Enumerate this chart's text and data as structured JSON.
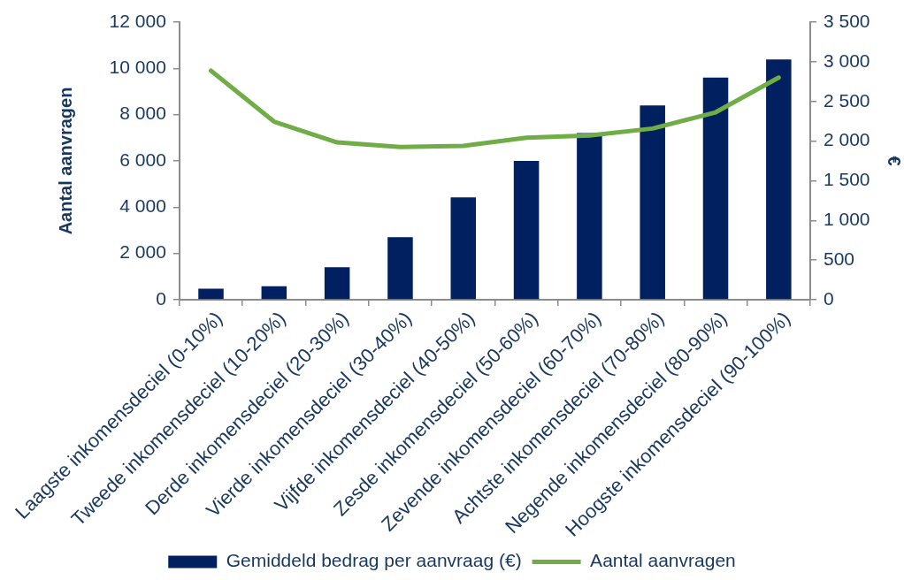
{
  "chart_data": {
    "type": "bar",
    "categories": [
      "Laagste inkomensdeciel (0-10%)",
      "Tweede inkomensdeciel (10-20%)",
      "Derde inkomensdeciel (20-30%)",
      "Vierde inkomensdeciel (30-40%)",
      "Vijfde inkomensdeciel (40-50%)",
      "Zesde inkomensdeciel (50-60%)",
      "Zevende inkomensdeciel (60-70%)",
      "Achtste inkomensdeciel (70-80%)",
      "Negende inkomensdeciel (80-90%)",
      "Hoogste inkomensdeciel (90-100%)"
    ],
    "ylabel": "Aantal aanvragen",
    "y2label": "€",
    "ylim": [
      0,
      12000
    ],
    "yticks": [
      0,
      {
        "value": 2000,
        "label": "2 000"
      },
      {
        "value": 4000,
        "label": "4 000"
      },
      {
        "value": 6000,
        "label": "6 000"
      },
      {
        "value": 8000,
        "label": "8 000"
      },
      {
        "value": 10000,
        "label": "10 000"
      },
      {
        "value": 12000,
        "label": "12 000"
      }
    ],
    "y2lim": [
      0,
      3500
    ],
    "y2ticks": [
      0,
      500,
      {
        "value": 1000,
        "label": "1 000"
      },
      {
        "value": 1500,
        "label": "1 500"
      },
      {
        "value": 2000,
        "label": "2 000"
      },
      {
        "value": 2500,
        "label": "2 500"
      },
      {
        "value": 3000,
        "label": "3 000"
      },
      {
        "value": 3500,
        "label": "3 500"
      }
    ],
    "legend": "bottom",
    "marker": "none",
    "series": [
      {
        "name": "Gemiddeld bedrag per aanvraag (€)",
        "axis": "y2",
        "color": "#002060",
        "values": [
          140,
          170,
          410,
          790,
          1290,
          1750,
          2100,
          2450,
          2800,
          3030
        ]
      },
      {
        "name": "Aantal aanvragen",
        "type": "line",
        "axis": "y",
        "color": "#70ad47",
        "values": [
          9900,
          7700,
          6800,
          6600,
          6650,
          7000,
          7100,
          7400,
          8100,
          9600
        ]
      }
    ]
  }
}
